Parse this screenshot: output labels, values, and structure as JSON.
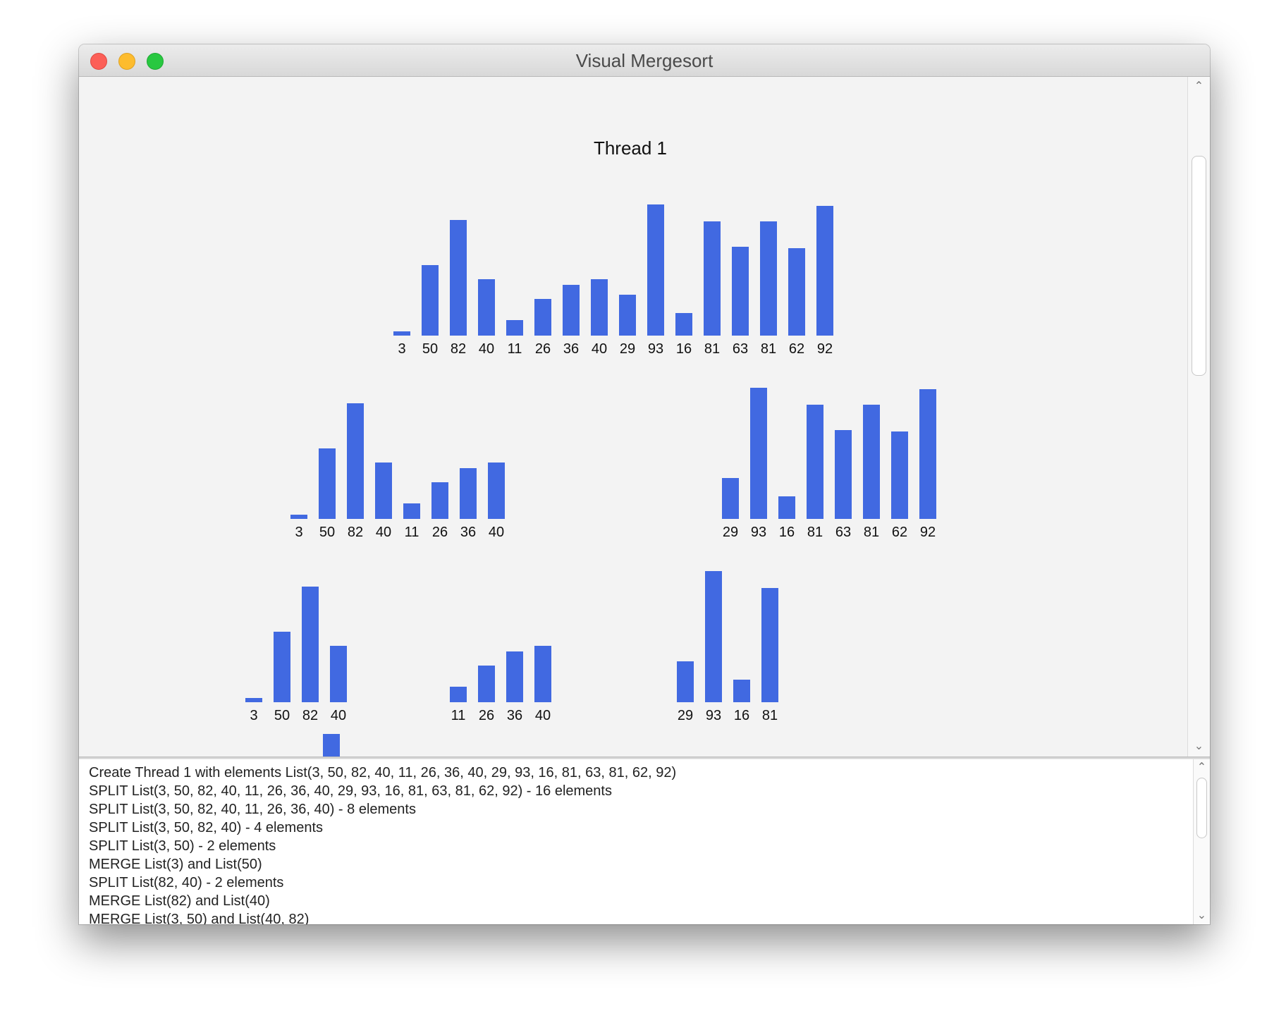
{
  "window": {
    "title": "Visual Mergesort"
  },
  "visualization": {
    "thread_title": "Thread 1"
  },
  "chart_data": {
    "type": "bar",
    "title": "Thread 1",
    "bar_color": "#4169e1",
    "value_max": 93,
    "charts": [
      {
        "level": 0,
        "values": [
          3,
          50,
          82,
          40,
          11,
          26,
          36,
          40,
          29,
          93,
          16,
          81,
          63,
          81,
          62,
          92
        ]
      },
      {
        "level": 1,
        "values": [
          3,
          50,
          82,
          40,
          11,
          26,
          36,
          40
        ]
      },
      {
        "level": 1,
        "values": [
          29,
          93,
          16,
          81,
          63,
          81,
          62,
          92
        ]
      },
      {
        "level": 2,
        "values": [
          3,
          50,
          82,
          40
        ]
      },
      {
        "level": 2,
        "values": [
          11,
          26,
          36,
          40
        ]
      },
      {
        "level": 2,
        "values": [
          29,
          93,
          16,
          81
        ]
      }
    ]
  },
  "log": {
    "lines": [
      "Create Thread 1 with elements List(3, 50, 82, 40, 11, 26, 36, 40, 29, 93, 16, 81, 63, 81, 62, 92)",
      "SPLIT List(3, 50, 82, 40, 11, 26, 36, 40, 29, 93, 16, 81, 63, 81, 62, 92) - 16 elements",
      "SPLIT List(3, 50, 82, 40, 11, 26, 36, 40) - 8 elements",
      "SPLIT List(3, 50, 82, 40) - 4 elements",
      "SPLIT List(3, 50) - 2 elements",
      "MERGE List(3) and List(50)",
      "SPLIT List(82, 40) - 2 elements",
      "MERGE List(82) and List(40)",
      "MERGE List(3, 50) and List(40, 82)"
    ]
  },
  "icons": {
    "scroll_up": "chevron-up-icon",
    "scroll_down": "chevron-down-icon"
  }
}
